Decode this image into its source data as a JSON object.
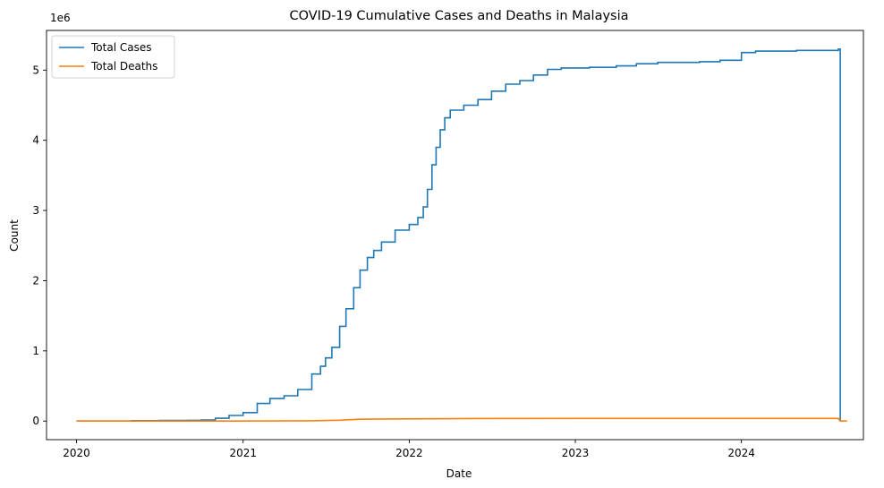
{
  "chart_data": {
    "type": "line",
    "title": "COVID-19 Cumulative Cases and Deaths in Malaysia",
    "xlabel": "Date",
    "ylabel": "Count",
    "y_offset_label": "1e6",
    "y_scale_multiplier": 1000000,
    "xlim": [
      "2019-10-27",
      "2024-09-25"
    ],
    "ylim": [
      -0.265,
      5.565
    ],
    "x_ticks": [
      "2020-01-01",
      "2021-01-01",
      "2022-01-01",
      "2023-01-01",
      "2024-01-01"
    ],
    "x_tick_labels": [
      "2020",
      "2021",
      "2022",
      "2023",
      "2024"
    ],
    "y_ticks": [
      0,
      1,
      2,
      3,
      4,
      5
    ],
    "y_tick_labels": [
      "0",
      "1",
      "2",
      "3",
      "4",
      "5"
    ],
    "legend": {
      "position": "upper-left",
      "entries": [
        "Total Cases",
        "Total Deaths"
      ]
    },
    "grid": false,
    "series": [
      {
        "name": "Total Cases",
        "color": "#1f77b4",
        "step": true,
        "points": [
          [
            "2020-01-01",
            0
          ],
          [
            "2020-03-01",
            0.0
          ],
          [
            "2020-05-01",
            0.006
          ],
          [
            "2020-07-01",
            0.009
          ],
          [
            "2020-09-01",
            0.01
          ],
          [
            "2020-10-01",
            0.015
          ],
          [
            "2020-11-01",
            0.04
          ],
          [
            "2020-12-01",
            0.08
          ],
          [
            "2021-01-01",
            0.12
          ],
          [
            "2021-02-01",
            0.25
          ],
          [
            "2021-03-01",
            0.32
          ],
          [
            "2021-04-01",
            0.36
          ],
          [
            "2021-05-01",
            0.45
          ],
          [
            "2021-06-01",
            0.67
          ],
          [
            "2021-06-20",
            0.78
          ],
          [
            "2021-07-01",
            0.9
          ],
          [
            "2021-07-15",
            1.05
          ],
          [
            "2021-08-01",
            1.35
          ],
          [
            "2021-08-15",
            1.6
          ],
          [
            "2021-09-01",
            1.9
          ],
          [
            "2021-09-15",
            2.15
          ],
          [
            "2021-10-01",
            2.33
          ],
          [
            "2021-10-15",
            2.43
          ],
          [
            "2021-11-01",
            2.55
          ],
          [
            "2021-12-01",
            2.72
          ],
          [
            "2022-01-01",
            2.8
          ],
          [
            "2022-01-20",
            2.9
          ],
          [
            "2022-02-01",
            3.05
          ],
          [
            "2022-02-10",
            3.3
          ],
          [
            "2022-02-20",
            3.65
          ],
          [
            "2022-03-01",
            3.9
          ],
          [
            "2022-03-10",
            4.15
          ],
          [
            "2022-03-20",
            4.32
          ],
          [
            "2022-04-01",
            4.43
          ],
          [
            "2022-05-01",
            4.5
          ],
          [
            "2022-06-01",
            4.58
          ],
          [
            "2022-07-01",
            4.7
          ],
          [
            "2022-08-01",
            4.8
          ],
          [
            "2022-09-01",
            4.85
          ],
          [
            "2022-10-01",
            4.93
          ],
          [
            "2022-11-01",
            5.01
          ],
          [
            "2022-12-01",
            5.03
          ],
          [
            "2023-02-01",
            5.04
          ],
          [
            "2023-04-01",
            5.06
          ],
          [
            "2023-05-15",
            5.09
          ],
          [
            "2023-07-01",
            5.11
          ],
          [
            "2023-10-01",
            5.12
          ],
          [
            "2023-11-15",
            5.14
          ],
          [
            "2024-01-01",
            5.25
          ],
          [
            "2024-02-01",
            5.27
          ],
          [
            "2024-05-01",
            5.28
          ],
          [
            "2024-08-01",
            5.3
          ],
          [
            "2024-08-05",
            0.0
          ]
        ]
      },
      {
        "name": "Total Deaths",
        "color": "#ff7f0e",
        "step": false,
        "points": [
          [
            "2020-01-01",
            0
          ],
          [
            "2021-01-01",
            0.0005
          ],
          [
            "2021-06-01",
            0.004
          ],
          [
            "2021-08-01",
            0.012
          ],
          [
            "2021-09-15",
            0.026
          ],
          [
            "2021-11-01",
            0.03
          ],
          [
            "2022-06-01",
            0.036
          ],
          [
            "2023-01-01",
            0.037
          ],
          [
            "2024-08-01",
            0.037
          ],
          [
            "2024-08-05",
            0.0
          ],
          [
            "2024-08-20",
            0.0
          ]
        ]
      }
    ]
  }
}
